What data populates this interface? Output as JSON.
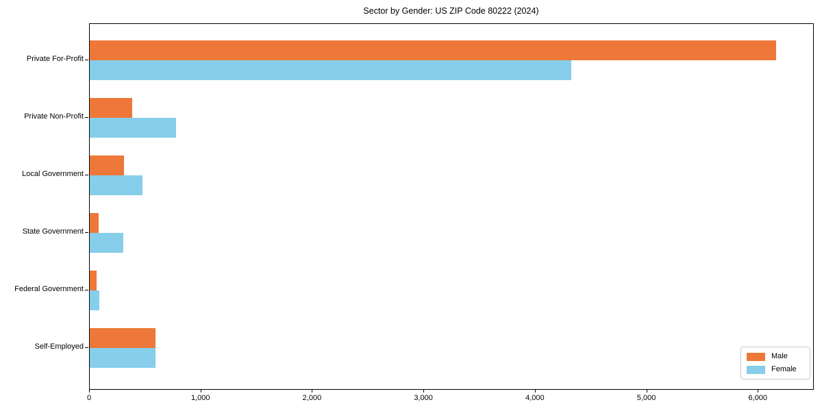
{
  "title": "Sector by Gender: US ZIP Code 80222 (2024)",
  "chart_data": {
    "type": "bar",
    "orientation": "horizontal",
    "title": "Sector by Gender: US ZIP Code 80222 (2024)",
    "categories": [
      "Private For-Profit",
      "Private Non-Profit",
      "Local Government",
      "State Government",
      "Federal Government",
      "Self-Employed"
    ],
    "series": [
      {
        "name": "Male",
        "color": "#ED7839",
        "values": [
          6160,
          380,
          310,
          80,
          60,
          590
        ]
      },
      {
        "name": "Female",
        "color": "#87CEEB",
        "values": [
          4320,
          775,
          475,
          300,
          85,
          590
        ]
      }
    ],
    "xlabel": "",
    "ylabel": "",
    "xlim": [
      0,
      6490
    ],
    "xticks": [
      0,
      1000,
      2000,
      3000,
      4000,
      5000,
      6000
    ],
    "xtick_labels": [
      "0",
      "1,000",
      "2,000",
      "3,000",
      "4,000",
      "5,000",
      "6,000"
    ],
    "grid": false,
    "legend": {
      "position": "lower right",
      "entries": [
        "Male",
        "Female"
      ]
    }
  }
}
